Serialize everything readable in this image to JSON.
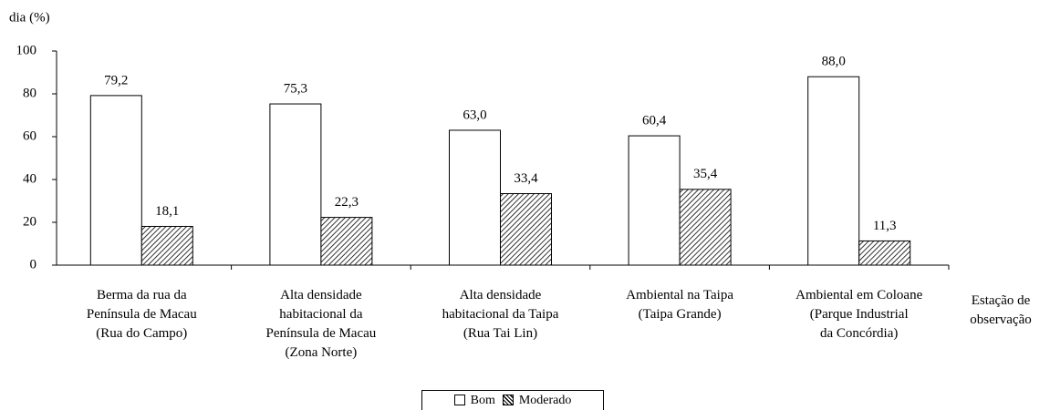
{
  "chart_data": {
    "type": "bar",
    "y_label": "dia (%)",
    "x_label": "Estação de\nobservação",
    "categories": [
      "Berma da rua da\nPenínsula de Macau\n(Rua do Campo)",
      "Alta densidade\nhabitacional da\nPenínsula de Macau\n(Zona Norte)",
      "Alta densidade\nhabitacional da Taipa\n(Rua Tai Lin)",
      "Ambiental na Taipa\n(Taipa Grande)",
      "Ambiental em Coloane\n(Parque Industrial\nda Concórdia)"
    ],
    "series": [
      {
        "name": "Bom",
        "color": "#ffffff",
        "hatch": false,
        "values": [
          79.2,
          75.3,
          63.0,
          60.4,
          88.0
        ],
        "value_labels": [
          "79,2",
          "75,3",
          "63,0",
          "60,4",
          "88,0"
        ]
      },
      {
        "name": "Moderado",
        "color": "#ffffff",
        "hatch": true,
        "values": [
          18.1,
          22.3,
          33.4,
          35.4,
          11.3
        ],
        "value_labels": [
          "18,1",
          "22,3",
          "33,4",
          "35,4",
          "11,3"
        ]
      }
    ],
    "ylim": [
      0,
      100
    ],
    "yticks": [
      0,
      20,
      40,
      60,
      80,
      100
    ],
    "grid": false,
    "legend": "bottom"
  }
}
